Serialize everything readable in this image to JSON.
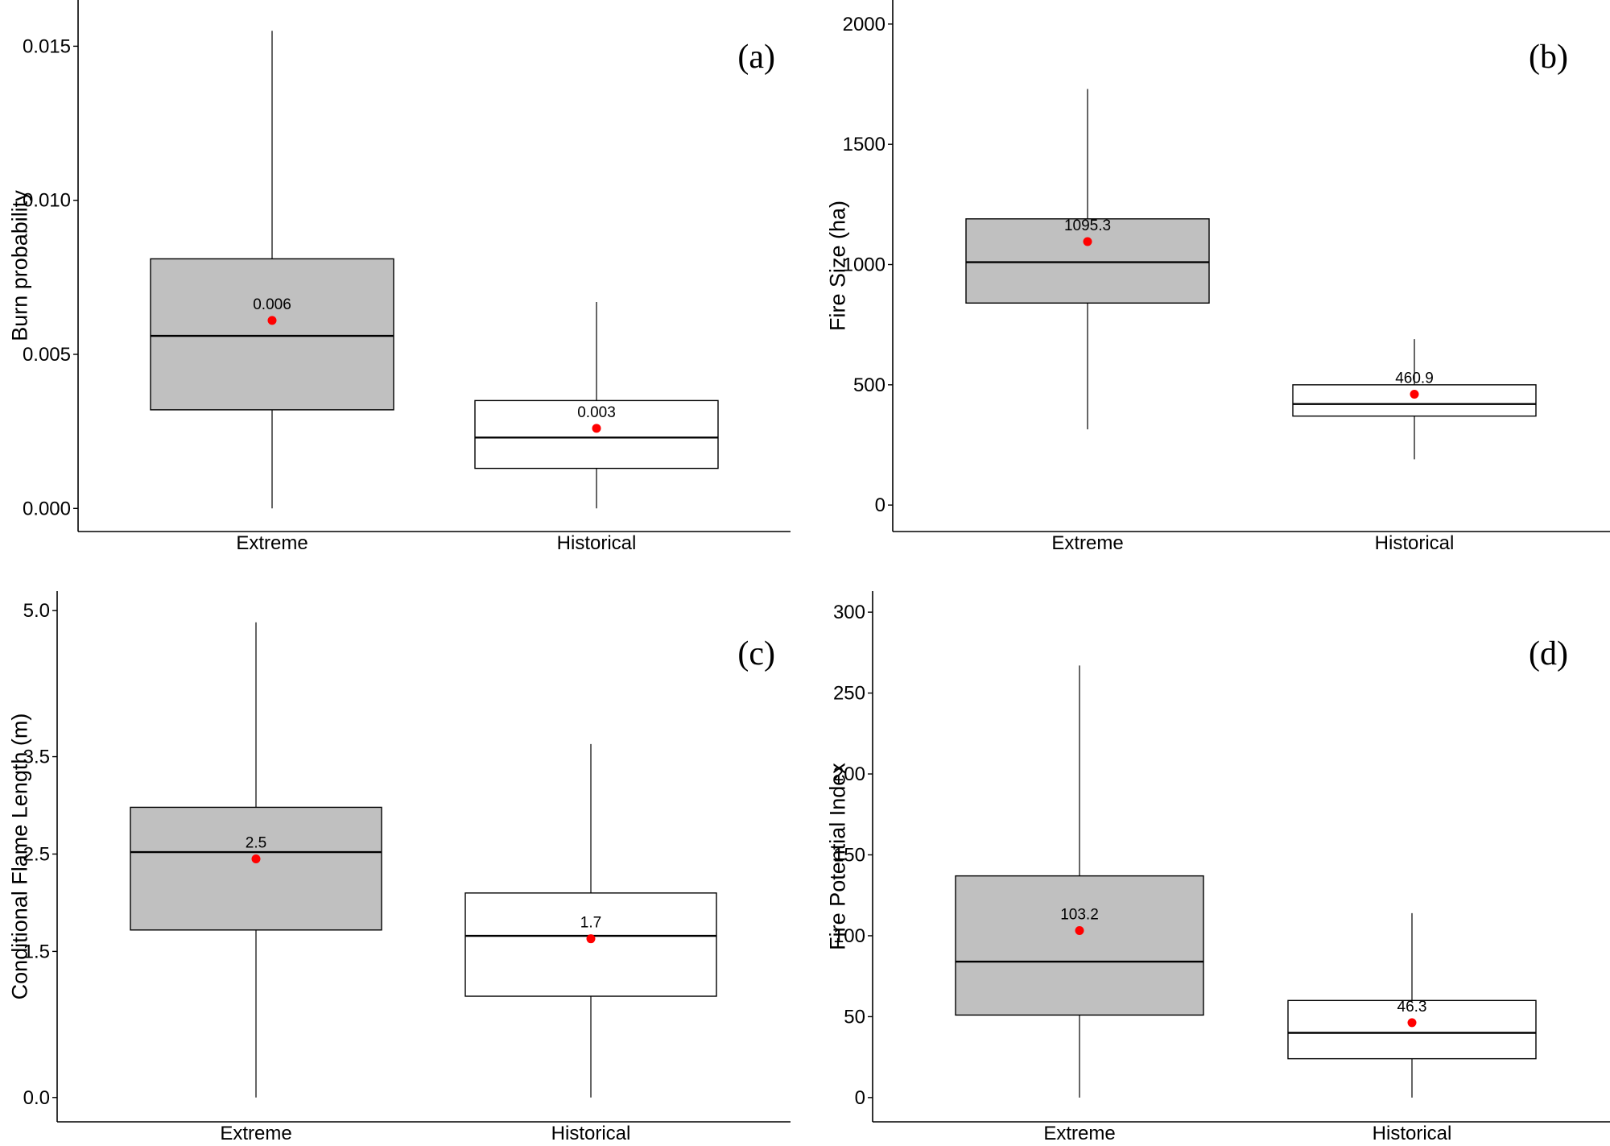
{
  "chart_data": [
    {
      "type": "box",
      "panel_label": "(a)",
      "ylabel": "Burn probability",
      "ylim": [
        -0.00075,
        0.0165
      ],
      "yticks": [
        {
          "value": 0.0,
          "label": "0.000"
        },
        {
          "value": 0.005,
          "label": "0.005"
        },
        {
          "value": 0.01,
          "label": "0.010"
        },
        {
          "value": 0.015,
          "label": "0.015"
        }
      ],
      "categories": [
        "Extreme",
        "Historical"
      ],
      "boxes": [
        {
          "category": "Extreme",
          "fill": "#c0c0c0",
          "whisker_low": 0.0,
          "q1": 0.0032,
          "median": 0.0056,
          "q3": 0.0081,
          "whisker_high": 0.0155,
          "mean": 0.0061,
          "mean_label": "0.006"
        },
        {
          "category": "Historical",
          "fill": "#ffffff",
          "whisker_low": 0.0,
          "q1": 0.0013,
          "median": 0.0023,
          "q3": 0.0035,
          "whisker_high": 0.0067,
          "mean": 0.0026,
          "mean_label": "0.003"
        }
      ],
      "mean_marker_color": "#ff0000"
    },
    {
      "type": "box",
      "panel_label": "(b)",
      "ylabel": "Fire Size (ha)",
      "ylim": [
        -110,
        2100
      ],
      "yticks": [
        {
          "value": 0,
          "label": "0"
        },
        {
          "value": 500,
          "label": "500"
        },
        {
          "value": 1000,
          "label": "1000"
        },
        {
          "value": 1500,
          "label": "1500"
        },
        {
          "value": 2000,
          "label": "2000"
        }
      ],
      "categories": [
        "Extreme",
        "Historical"
      ],
      "boxes": [
        {
          "category": "Extreme",
          "fill": "#c0c0c0",
          "whisker_low": 315,
          "q1": 840,
          "median": 1010,
          "q3": 1190,
          "whisker_high": 1730,
          "mean": 1095.3,
          "mean_label": "1095.3"
        },
        {
          "category": "Historical",
          "fill": "#ffffff",
          "whisker_low": 190,
          "q1": 370,
          "median": 420,
          "q3": 500,
          "whisker_high": 690,
          "mean": 460.9,
          "mean_label": "460.9"
        }
      ],
      "mean_marker_color": "#ff0000"
    },
    {
      "type": "box",
      "panel_label": "(c)",
      "ylabel": "Conditional Flame Length (m)",
      "ylim": [
        -0.25,
        5.2
      ],
      "yticks": [
        {
          "value": 0.0,
          "label": "0.0"
        },
        {
          "value": 1.5,
          "label": "1.5"
        },
        {
          "value": 2.5,
          "label": "2.5"
        },
        {
          "value": 3.5,
          "label": "3.5"
        },
        {
          "value": 5.0,
          "label": "5.0"
        }
      ],
      "categories": [
        "Extreme",
        "Historical"
      ],
      "boxes": [
        {
          "category": "Extreme",
          "fill": "#c0c0c0",
          "whisker_low": 0.0,
          "q1": 1.72,
          "median": 2.52,
          "q3": 2.98,
          "whisker_high": 4.88,
          "mean": 2.45,
          "mean_label": "2.5"
        },
        {
          "category": "Historical",
          "fill": "#ffffff",
          "whisker_low": 0.0,
          "q1": 1.04,
          "median": 1.66,
          "q3": 2.1,
          "whisker_high": 3.63,
          "mean": 1.63,
          "mean_label": "1.7"
        }
      ],
      "mean_marker_color": "#ff0000"
    },
    {
      "type": "box",
      "panel_label": "(d)",
      "ylabel": "Fire Potential Index",
      "ylim": [
        -15,
        313
      ],
      "yticks": [
        {
          "value": 0,
          "label": "0"
        },
        {
          "value": 50,
          "label": "50"
        },
        {
          "value": 100,
          "label": "100"
        },
        {
          "value": 150,
          "label": "150"
        },
        {
          "value": 200,
          "label": "200"
        },
        {
          "value": 250,
          "label": "250"
        },
        {
          "value": 300,
          "label": "300"
        }
      ],
      "categories": [
        "Extreme",
        "Historical"
      ],
      "boxes": [
        {
          "category": "Extreme",
          "fill": "#c0c0c0",
          "whisker_low": 0,
          "q1": 51,
          "median": 84,
          "q3": 137,
          "whisker_high": 267,
          "mean": 103.2,
          "mean_label": "103.2"
        },
        {
          "category": "Historical",
          "fill": "#ffffff",
          "whisker_low": 0,
          "q1": 24,
          "median": 40,
          "q3": 60,
          "whisker_high": 114,
          "mean": 46.3,
          "mean_label": "46.3"
        }
      ],
      "mean_marker_color": "#ff0000"
    }
  ]
}
